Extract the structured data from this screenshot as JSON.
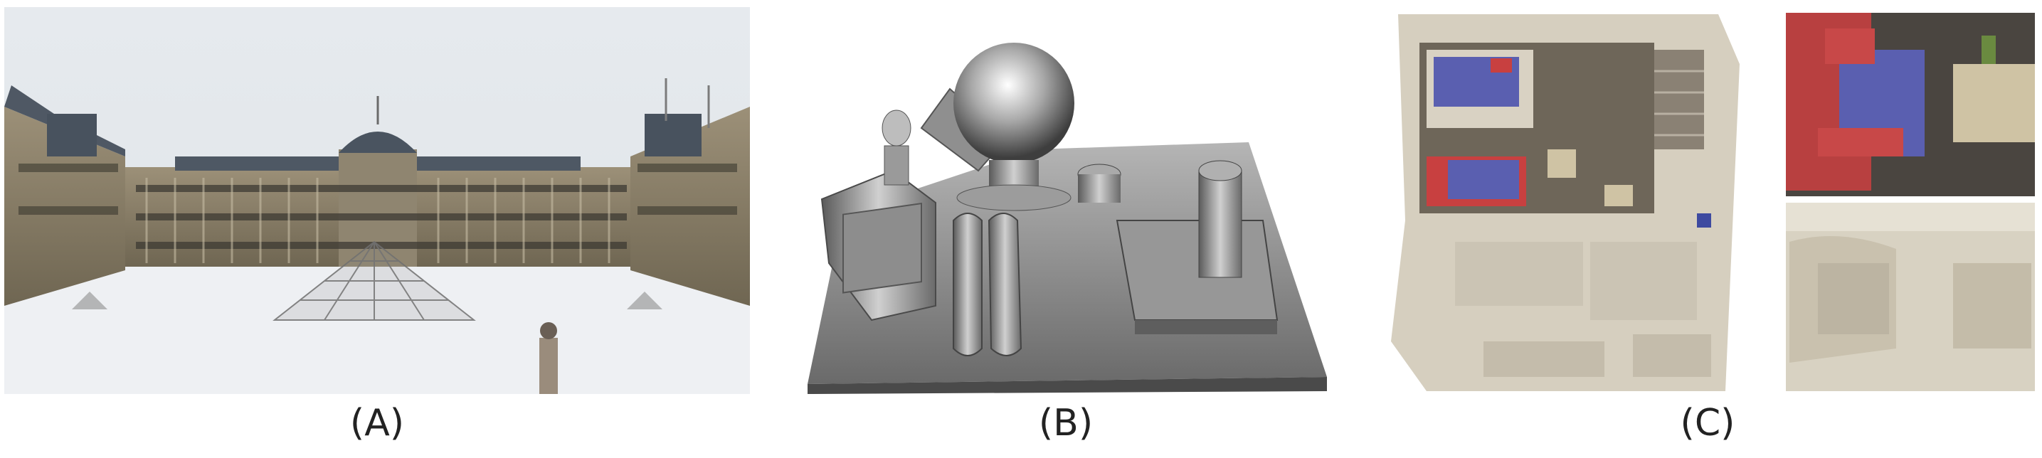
{
  "panels": [
    {
      "label": "(A)"
    },
    {
      "label": "(B)"
    },
    {
      "label": "(C)"
    }
  ],
  "colors": {
    "sky": "#e4e8ec",
    "stone": "#a89e88",
    "roof": "#4a5460",
    "metal": "#9a9a9a",
    "floor": "#d5cfbf",
    "blue_bed": "#5a5fb0",
    "red_pillow": "#c84040"
  }
}
